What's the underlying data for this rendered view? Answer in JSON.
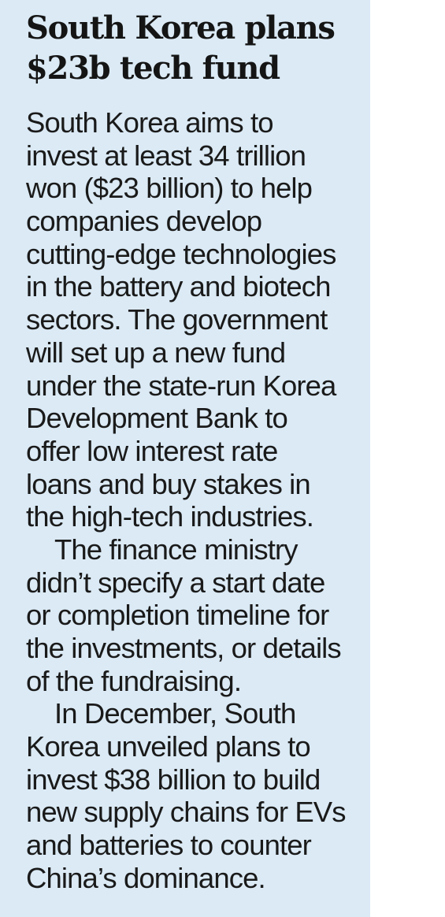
{
  "article": {
    "headline_lines": [
      "South Korea plans",
      "$23b tech fund"
    ],
    "body_lines": [
      "South Korea aims to",
      "invest at least 34 trillion",
      "won ($23 billion) to help",
      "companies develop",
      "cutting-edge technologies",
      "in the battery and biotech",
      "sectors. The government",
      "will set up a new fund",
      "under the state-run Korea",
      "Development Bank to",
      "offer low interest rate",
      "loans and buy stakes in",
      "the high-tech industries.",
      "The finance ministry",
      "didn’t specify a start date",
      "or completion timeline for",
      "the investments, or details",
      "of the fundraising.",
      "In December, South",
      "Korea unveiled plans to",
      "invest $38 billion to build",
      "new supply chains for EVs",
      "and batteries to counter",
      "China’s dominance."
    ]
  },
  "colors": {
    "panel_background": "#dbeaf5",
    "text": "#1a1a1a"
  }
}
